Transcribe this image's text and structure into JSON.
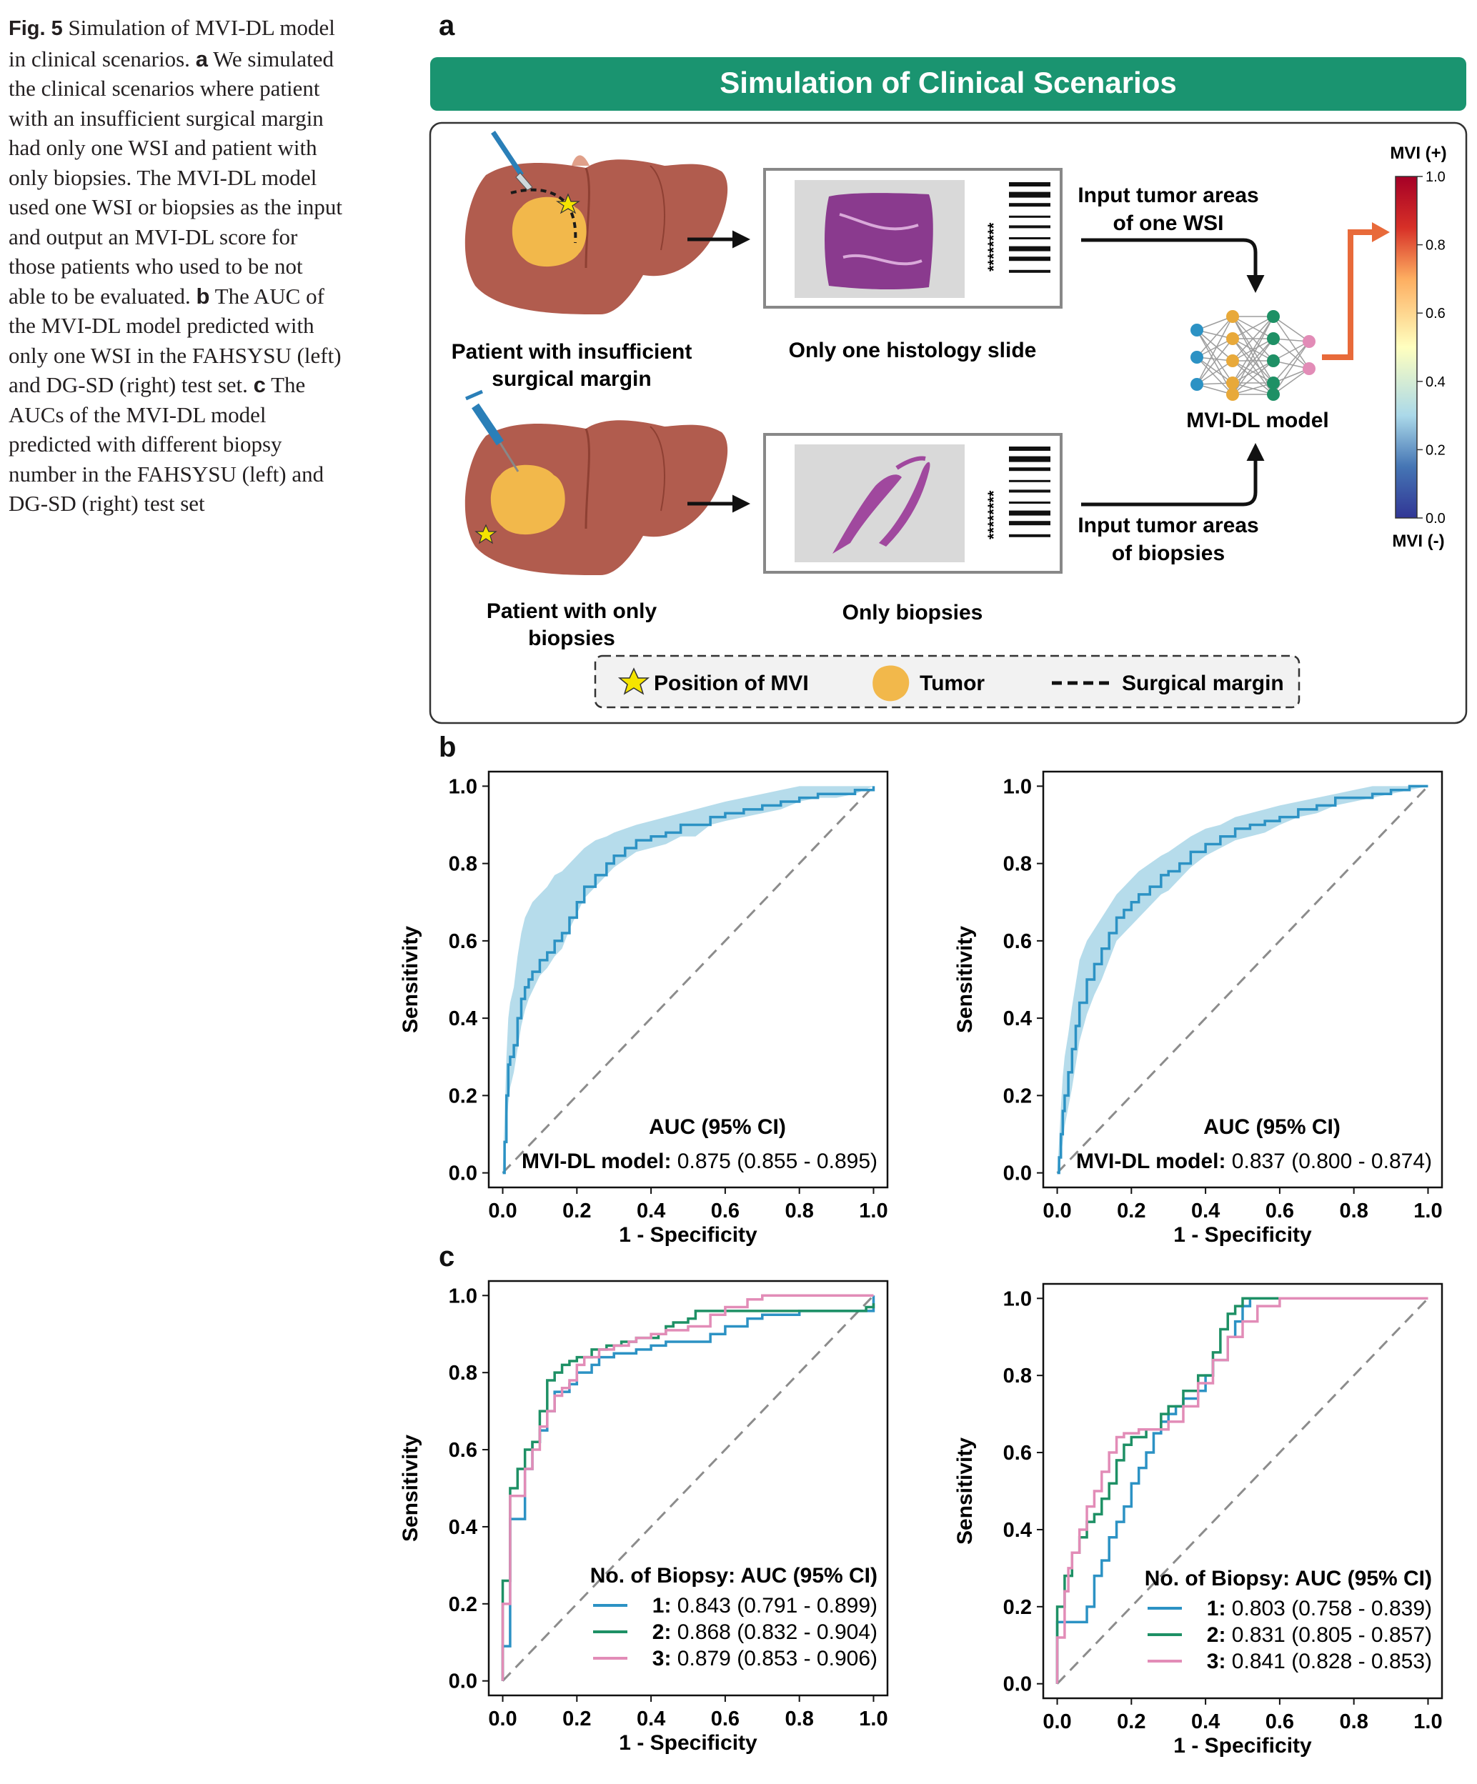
{
  "caption": {
    "fig_label": "Fig. 5",
    "title": "Simulation of MVI-DL model in clinical scenarios.",
    "a_label": "a",
    "a_text": "We simulated the clinical scenarios where patient with an insufficient surgical margin had only one WSI and patient with only biopsies. The MVI-DL model used one WSI or biopsies as the input and output an MVI-DL score for those patients who used to be not able to be evaluated.",
    "b_label": "b",
    "b_text": "The AUC of the MVI-DL model predicted with only one WSI in the FAHSYSU (left) and DG-SD (right) test set.",
    "c_label": "c",
    "c_text": "The AUCs of the MVI-DL model predicted with different biopsy number in the FAHSYSU (left) and DG-SD (right) test set"
  },
  "panels": {
    "a": "a",
    "b": "b",
    "c": "c"
  },
  "diagram": {
    "banner_title": "Simulation of Clinical Scenarios",
    "banner_color": "#1a9470",
    "patient1_line1": "Patient with insufficient",
    "patient1_line2": "surgical margin",
    "patient2_line1": "Patient with only",
    "patient2_line2": "biopsies",
    "slide1_label": "Only one histology slide",
    "slide2_label": "Only biopsies",
    "slide_stars": "********",
    "input1_line1": "Input tumor areas",
    "input1_line2": "of one WSI",
    "input2_line1": "Input tumor areas",
    "input2_line2": "of biopsies",
    "model_label": "MVI-DL model",
    "colorbar_top": "MVI (+)",
    "colorbar_bottom": "MVI (-)",
    "colorbar_ticks": [
      "1.0",
      "0.8",
      "0.6",
      "0.4",
      "0.2",
      "0.0"
    ],
    "legend_mvi": "Position of MVI",
    "legend_tumor": "Tumor",
    "legend_margin": "Surgical margin",
    "colors": {
      "liver": "#b15c4e",
      "tumor": "#f2b84b",
      "he_stain": "#8a3a8e",
      "arrow": "#e86a3a"
    },
    "icons": [
      "liver-icon",
      "scalpel-icon",
      "syringe-icon",
      "star-icon",
      "tumor-icon",
      "barcode-icon",
      "neural-network-icon",
      "colorbar"
    ]
  },
  "chart_data": [
    {
      "id": "b-left",
      "type": "line",
      "xlabel": "1 - Specificity",
      "ylabel": "Sensitivity",
      "xlim": [
        0,
        1
      ],
      "ylim": [
        0,
        1
      ],
      "xticks": [
        "0.0",
        "0.2",
        "0.4",
        "0.6",
        "0.8",
        "1.0"
      ],
      "yticks": [
        "0.0",
        "0.2",
        "0.4",
        "0.6",
        "0.8",
        "1.0"
      ],
      "legend_title": "AUC (95% CI)",
      "grid": false,
      "series": [
        {
          "label": "MVI-DL model:",
          "value": "0.875 (0.855 - 0.895)",
          "color": "#2c92c4",
          "ci_color": "#a9d6e8",
          "x": [
            0,
            0.005,
            0.01,
            0.015,
            0.02,
            0.03,
            0.04,
            0.05,
            0.06,
            0.07,
            0.08,
            0.1,
            0.12,
            0.14,
            0.16,
            0.18,
            0.2,
            0.22,
            0.25,
            0.28,
            0.3,
            0.33,
            0.36,
            0.4,
            0.44,
            0.48,
            0.52,
            0.56,
            0.6,
            0.65,
            0.7,
            0.75,
            0.8,
            0.85,
            0.9,
            0.95,
            1
          ],
          "y": [
            0,
            0.08,
            0.2,
            0.28,
            0.3,
            0.33,
            0.4,
            0.45,
            0.48,
            0.5,
            0.52,
            0.55,
            0.57,
            0.6,
            0.62,
            0.66,
            0.7,
            0.74,
            0.77,
            0.8,
            0.82,
            0.84,
            0.86,
            0.87,
            0.88,
            0.9,
            0.9,
            0.92,
            0.93,
            0.94,
            0.95,
            0.96,
            0.97,
            0.98,
            0.98,
            0.99,
            1
          ],
          "ci_low": [
            0,
            0.02,
            0.1,
            0.18,
            0.22,
            0.26,
            0.32,
            0.38,
            0.42,
            0.45,
            0.47,
            0.51,
            0.53,
            0.56,
            0.58,
            0.63,
            0.67,
            0.71,
            0.74,
            0.77,
            0.79,
            0.81,
            0.83,
            0.84,
            0.85,
            0.87,
            0.87,
            0.9,
            0.91,
            0.92,
            0.93,
            0.94,
            0.96,
            0.97,
            0.97,
            0.98,
            1
          ],
          "ci_high": [
            0,
            0.14,
            0.3,
            0.4,
            0.44,
            0.48,
            0.56,
            0.62,
            0.66,
            0.68,
            0.7,
            0.72,
            0.74,
            0.77,
            0.78,
            0.8,
            0.82,
            0.84,
            0.86,
            0.87,
            0.88,
            0.89,
            0.9,
            0.91,
            0.92,
            0.93,
            0.94,
            0.95,
            0.96,
            0.97,
            0.98,
            0.99,
            1,
            1,
            1,
            1,
            1
          ]
        }
      ]
    },
    {
      "id": "b-right",
      "type": "line",
      "xlabel": "1 - Specificity",
      "ylabel": "Sensitivity",
      "xlim": [
        0,
        1
      ],
      "ylim": [
        0,
        1
      ],
      "xticks": [
        "0.0",
        "0.2",
        "0.4",
        "0.6",
        "0.8",
        "1.0"
      ],
      "yticks": [
        "0.0",
        "0.2",
        "0.4",
        "0.6",
        "0.8",
        "1.0"
      ],
      "legend_title": "AUC (95% CI)",
      "grid": false,
      "series": [
        {
          "label": "MVI-DL model:",
          "value": "0.837 (0.800 - 0.874)",
          "color": "#2c92c4",
          "ci_color": "#a9d6e8",
          "x": [
            0,
            0.005,
            0.01,
            0.015,
            0.02,
            0.03,
            0.04,
            0.05,
            0.06,
            0.08,
            0.1,
            0.12,
            0.14,
            0.16,
            0.18,
            0.2,
            0.22,
            0.25,
            0.28,
            0.3,
            0.33,
            0.36,
            0.4,
            0.44,
            0.48,
            0.52,
            0.56,
            0.6,
            0.65,
            0.7,
            0.75,
            0.8,
            0.85,
            0.9,
            0.95,
            1
          ],
          "y": [
            0,
            0.04,
            0.1,
            0.16,
            0.2,
            0.26,
            0.32,
            0.38,
            0.44,
            0.5,
            0.54,
            0.58,
            0.62,
            0.66,
            0.68,
            0.7,
            0.72,
            0.74,
            0.77,
            0.78,
            0.8,
            0.83,
            0.85,
            0.87,
            0.89,
            0.9,
            0.91,
            0.92,
            0.94,
            0.95,
            0.97,
            0.97,
            0.98,
            0.99,
            1,
            1
          ],
          "ci_low": [
            0,
            0.01,
            0.04,
            0.08,
            0.12,
            0.17,
            0.22,
            0.28,
            0.34,
            0.41,
            0.46,
            0.5,
            0.55,
            0.6,
            0.62,
            0.64,
            0.66,
            0.69,
            0.72,
            0.73,
            0.76,
            0.79,
            0.82,
            0.84,
            0.86,
            0.87,
            0.88,
            0.9,
            0.92,
            0.93,
            0.95,
            0.96,
            0.97,
            0.98,
            0.99,
            1
          ],
          "ci_high": [
            0,
            0.08,
            0.17,
            0.25,
            0.3,
            0.36,
            0.43,
            0.49,
            0.55,
            0.6,
            0.63,
            0.66,
            0.69,
            0.72,
            0.74,
            0.76,
            0.78,
            0.8,
            0.82,
            0.83,
            0.85,
            0.87,
            0.89,
            0.9,
            0.92,
            0.93,
            0.94,
            0.95,
            0.96,
            0.97,
            0.98,
            0.99,
            1,
            1,
            1,
            1
          ]
        }
      ]
    },
    {
      "id": "c-left",
      "type": "line",
      "xlabel": "1 - Specificity",
      "ylabel": "Sensitivity",
      "xlim": [
        0,
        1
      ],
      "ylim": [
        0,
        1
      ],
      "xticks": [
        "0.0",
        "0.2",
        "0.4",
        "0.6",
        "0.8",
        "1.0"
      ],
      "yticks": [
        "0.0",
        "0.2",
        "0.4",
        "0.6",
        "0.8",
        "1.0"
      ],
      "legend_title": "No. of Biopsy: AUC (95% CI)",
      "grid": false,
      "series": [
        {
          "label": "1:",
          "value": "0.843 (0.791 - 0.899)",
          "color": "#2c92c4",
          "x": [
            0,
            0,
            0.02,
            0.02,
            0.04,
            0.06,
            0.06,
            0.08,
            0.08,
            0.1,
            0.12,
            0.14,
            0.18,
            0.2,
            0.24,
            0.26,
            0.3,
            0.36,
            0.4,
            0.44,
            0.5,
            0.56,
            0.6,
            0.66,
            0.7,
            0.8,
            0.9,
            0.98,
            1
          ],
          "y": [
            0,
            0.09,
            0.09,
            0.42,
            0.42,
            0.46,
            0.55,
            0.55,
            0.62,
            0.65,
            0.7,
            0.75,
            0.77,
            0.8,
            0.82,
            0.84,
            0.85,
            0.86,
            0.87,
            0.88,
            0.88,
            0.9,
            0.92,
            0.94,
            0.95,
            0.96,
            0.96,
            0.96,
            1
          ]
        },
        {
          "label": "2:",
          "value": "0.868 (0.832 - 0.904)",
          "color": "#1e9065",
          "x": [
            0,
            0,
            0.02,
            0.02,
            0.04,
            0.06,
            0.08,
            0.1,
            0.12,
            0.14,
            0.16,
            0.18,
            0.2,
            0.24,
            0.28,
            0.32,
            0.36,
            0.42,
            0.44,
            0.46,
            0.5,
            0.52,
            0.56,
            0.6,
            0.66,
            0.7,
            0.8,
            0.9,
            0.98,
            1
          ],
          "y": [
            0,
            0.26,
            0.26,
            0.5,
            0.55,
            0.6,
            0.62,
            0.7,
            0.78,
            0.8,
            0.82,
            0.83,
            0.84,
            0.86,
            0.87,
            0.88,
            0.89,
            0.9,
            0.92,
            0.93,
            0.94,
            0.96,
            0.96,
            0.96,
            0.96,
            0.96,
            0.96,
            0.96,
            0.97,
            0.98
          ]
        },
        {
          "label": "3:",
          "value": "0.879 (0.853 - 0.906)",
          "color": "#e28cb7",
          "x": [
            0,
            0,
            0.02,
            0.02,
            0.04,
            0.06,
            0.08,
            0.1,
            0.12,
            0.14,
            0.16,
            0.18,
            0.2,
            0.22,
            0.26,
            0.3,
            0.34,
            0.36,
            0.4,
            0.44,
            0.5,
            0.56,
            0.6,
            0.66,
            0.7,
            0.8,
            0.9,
            0.96,
            1
          ],
          "y": [
            0,
            0.2,
            0.2,
            0.48,
            0.48,
            0.55,
            0.6,
            0.66,
            0.7,
            0.74,
            0.76,
            0.78,
            0.82,
            0.84,
            0.86,
            0.87,
            0.88,
            0.89,
            0.9,
            0.91,
            0.92,
            0.95,
            0.97,
            0.99,
            1,
            1,
            1,
            1,
            1
          ]
        }
      ]
    },
    {
      "id": "c-right",
      "type": "line",
      "xlabel": "1 - Specificity",
      "ylabel": "Sensitivity",
      "xlim": [
        0,
        1
      ],
      "ylim": [
        0,
        1
      ],
      "xticks": [
        "0.0",
        "0.2",
        "0.4",
        "0.6",
        "0.8",
        "1.0"
      ],
      "yticks": [
        "0.0",
        "0.2",
        "0.4",
        "0.6",
        "0.8",
        "1.0"
      ],
      "legend_title": "No. of Biopsy: AUC (95% CI)",
      "grid": false,
      "series": [
        {
          "label": "1:",
          "value": "0.803 (0.758 - 0.839)",
          "color": "#2c92c4",
          "x": [
            0,
            0,
            0.08,
            0.08,
            0.1,
            0.12,
            0.14,
            0.16,
            0.18,
            0.2,
            0.22,
            0.24,
            0.26,
            0.28,
            0.3,
            0.32,
            0.34,
            0.38,
            0.4,
            0.42,
            0.46,
            0.48,
            0.5,
            0.52,
            0.56,
            0.6,
            0.7,
            0.8,
            0.9,
            1
          ],
          "y": [
            0,
            0.16,
            0.16,
            0.2,
            0.28,
            0.32,
            0.38,
            0.42,
            0.46,
            0.52,
            0.56,
            0.6,
            0.65,
            0.68,
            0.7,
            0.72,
            0.74,
            0.76,
            0.8,
            0.84,
            0.9,
            0.94,
            0.98,
            1,
            1,
            1,
            1,
            1,
            1,
            1
          ]
        },
        {
          "label": "2:",
          "value": "0.831 (0.805 - 0.857)",
          "color": "#1e9065",
          "x": [
            0,
            0,
            0.02,
            0.04,
            0.06,
            0.08,
            0.1,
            0.12,
            0.14,
            0.16,
            0.18,
            0.2,
            0.24,
            0.28,
            0.3,
            0.34,
            0.38,
            0.42,
            0.44,
            0.46,
            0.48,
            0.5,
            0.52,
            0.6,
            0.7,
            0.8,
            0.9,
            1
          ],
          "y": [
            0,
            0.2,
            0.28,
            0.34,
            0.38,
            0.42,
            0.44,
            0.48,
            0.52,
            0.58,
            0.62,
            0.64,
            0.66,
            0.7,
            0.72,
            0.76,
            0.8,
            0.86,
            0.92,
            0.96,
            0.98,
            1,
            1,
            1,
            1,
            1,
            1,
            1
          ]
        },
        {
          "label": "3:",
          "value": "0.841 (0.828 - 0.853)",
          "color": "#e28cb7",
          "x": [
            0,
            0,
            0.02,
            0.03,
            0.04,
            0.06,
            0.08,
            0.1,
            0.12,
            0.14,
            0.16,
            0.18,
            0.22,
            0.26,
            0.3,
            0.34,
            0.38,
            0.42,
            0.46,
            0.5,
            0.54,
            0.6,
            0.7,
            0.8,
            0.9,
            1
          ],
          "y": [
            0,
            0.12,
            0.24,
            0.3,
            0.34,
            0.4,
            0.46,
            0.5,
            0.55,
            0.6,
            0.64,
            0.65,
            0.66,
            0.66,
            0.68,
            0.72,
            0.78,
            0.84,
            0.9,
            0.94,
            0.98,
            1,
            1,
            1,
            1,
            1
          ]
        }
      ]
    }
  ]
}
